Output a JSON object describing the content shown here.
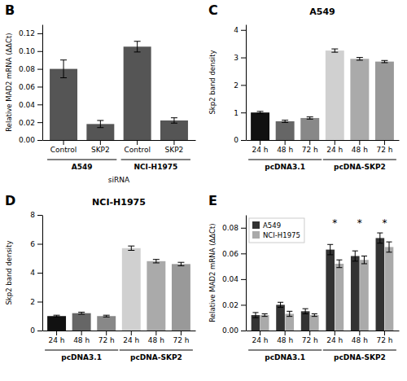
{
  "chart_data": [
    {
      "type": "bar",
      "ylabel": "Relative MAD2 mRNA (ΔΔCt)",
      "xlabel": "siRNA",
      "categories": [
        "Control",
        "SKP2",
        "Control",
        "SKP2"
      ],
      "group_labels": [
        "A549",
        "NCI-H1975"
      ],
      "values": [
        0.08,
        0.018,
        0.105,
        0.022
      ],
      "errors": [
        0.01,
        0.004,
        0.006,
        0.003
      ],
      "color": "#555555",
      "ylim": [
        0,
        0.13
      ],
      "yticks": [
        {
          "value": 0,
          "label": "0.00"
        },
        0.02,
        0.04,
        0.06,
        0.08,
        {
          "value": 0.1,
          "label": "0.10"
        },
        0.12
      ],
      "annotations": [
        {
          "text": "B"
        }
      ]
    },
    {
      "type": "bar",
      "title": "A549",
      "ylabel": "Skp2 band density",
      "categories": [
        "24 h",
        "48 h",
        "72 h",
        "24 h",
        "48 h",
        "72 h"
      ],
      "group_labels": [
        "pcDNA3.1",
        "pcDNA-SKP2"
      ],
      "values": [
        1.0,
        0.68,
        0.8,
        3.25,
        2.95,
        2.85
      ],
      "errors": [
        0.04,
        0.04,
        0.04,
        0.06,
        0.05,
        0.04
      ],
      "colors": [
        "#111111",
        "#666666",
        "#888888",
        "#d0d0d0",
        "#aaaaaa",
        "#999999"
      ],
      "ylim": [
        0,
        4.2
      ],
      "yticks": [
        0,
        1,
        2,
        3,
        4
      ],
      "annotations": [
        {
          "text": "C"
        }
      ]
    },
    {
      "type": "bar",
      "title": "NCI-H1975",
      "ylabel": "Skp2 band density",
      "categories": [
        "24 h",
        "48 h",
        "72 h",
        "24 h",
        "48 h",
        "72 h"
      ],
      "group_labels": [
        "pcDNA3.1",
        "pcDNA-SKP2"
      ],
      "values": [
        1.0,
        1.2,
        1.0,
        5.7,
        4.8,
        4.6
      ],
      "errors": [
        0.06,
        0.07,
        0.06,
        0.15,
        0.12,
        0.12
      ],
      "colors": [
        "#111111",
        "#666666",
        "#888888",
        "#d0d0d0",
        "#aaaaaa",
        "#999999"
      ],
      "ylim": [
        0,
        8.0
      ],
      "yticks": [
        0,
        2,
        4,
        6,
        8
      ],
      "annotations": [
        {
          "text": "D"
        }
      ]
    },
    {
      "type": "bar",
      "ylabel": "Relative MAD2 mRNA (ΔΔCt)",
      "categories": [
        "24 h",
        "48 h",
        "72 h",
        "24 h",
        "48 h",
        "72 h"
      ],
      "group_labels": [
        "pcDNA3.1",
        "pcDNA-SKP2"
      ],
      "series": [
        {
          "name": "A549",
          "color": "#333333",
          "values": [
            0.012,
            0.02,
            0.015,
            0.063,
            0.058,
            0.072
          ],
          "errors": [
            0.002,
            0.002,
            0.002,
            0.004,
            0.004,
            0.004
          ]
        },
        {
          "name": "NCI-H1975",
          "color": "#aaaaaa",
          "values": [
            0.012,
            0.013,
            0.012,
            0.052,
            0.055,
            0.065
          ],
          "errors": [
            0.001,
            0.002,
            0.001,
            0.003,
            0.003,
            0.004
          ]
        }
      ],
      "ylim": [
        0,
        0.09
      ],
      "yticks": [
        {
          "value": 0,
          "label": "0.00"
        },
        0.02,
        0.04,
        0.06,
        0.08
      ],
      "legend": "upper left",
      "annotations": [
        {
          "text": "E"
        },
        {
          "text": "*",
          "category": 3
        },
        {
          "text": "*",
          "category": 4
        },
        {
          "text": "*",
          "category": 5
        }
      ]
    }
  ]
}
